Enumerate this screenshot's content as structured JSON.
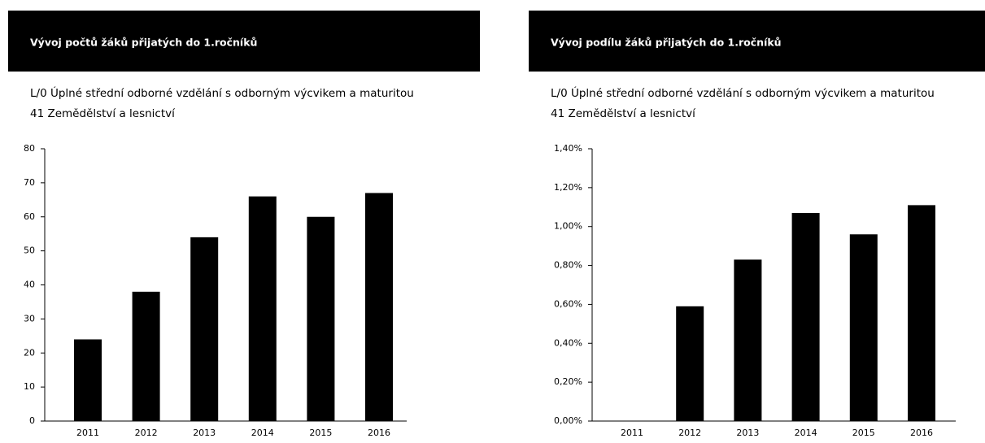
{
  "chart_data": [
    {
      "type": "bar",
      "title": "Vývoj počtů žáků přijatých do 1.ročníků",
      "subtitle": [
        "L/0 Úplné střední odborné vzdělání s odborným výcvikem a maturitou",
        "41 Zemědělství a lesnictví"
      ],
      "categories": [
        "2011",
        "2012",
        "2013",
        "2014",
        "2015",
        "2016"
      ],
      "values": [
        24,
        38,
        54,
        66,
        60,
        67
      ],
      "color": "#000000",
      "ylim": [
        0,
        80
      ],
      "yticks": [
        0,
        10,
        20,
        30,
        40,
        50,
        60,
        70,
        80
      ],
      "grid": false
    },
    {
      "type": "bar",
      "title": "Vývoj podílu žáků přijatých do 1.ročníků",
      "subtitle": [
        "L/0 Úplné střední odborné vzdělání s odborným výcvikem a maturitou",
        "41 Zemědělství a lesnictví"
      ],
      "categories": [
        "2011",
        "2012",
        "2013",
        "2014",
        "2015",
        "2016"
      ],
      "values": [
        0,
        0.59,
        0.83,
        1.07,
        0.96,
        1.11
      ],
      "color": "#000000",
      "ylim": [
        0,
        1.4
      ],
      "yticks": [
        {
          "value": 0,
          "label": "0,00%"
        },
        {
          "value": 0.2,
          "label": "0,20%"
        },
        {
          "value": 0.4,
          "label": "0,40%"
        },
        {
          "value": 0.6,
          "label": "0,60%"
        },
        {
          "value": 0.8,
          "label": "0,80%"
        },
        {
          "value": 1.0,
          "label": "1,00%"
        },
        {
          "value": 1.2,
          "label": "1,20%"
        },
        {
          "value": 1.4,
          "label": "1,40%"
        }
      ],
      "grid": false
    }
  ]
}
